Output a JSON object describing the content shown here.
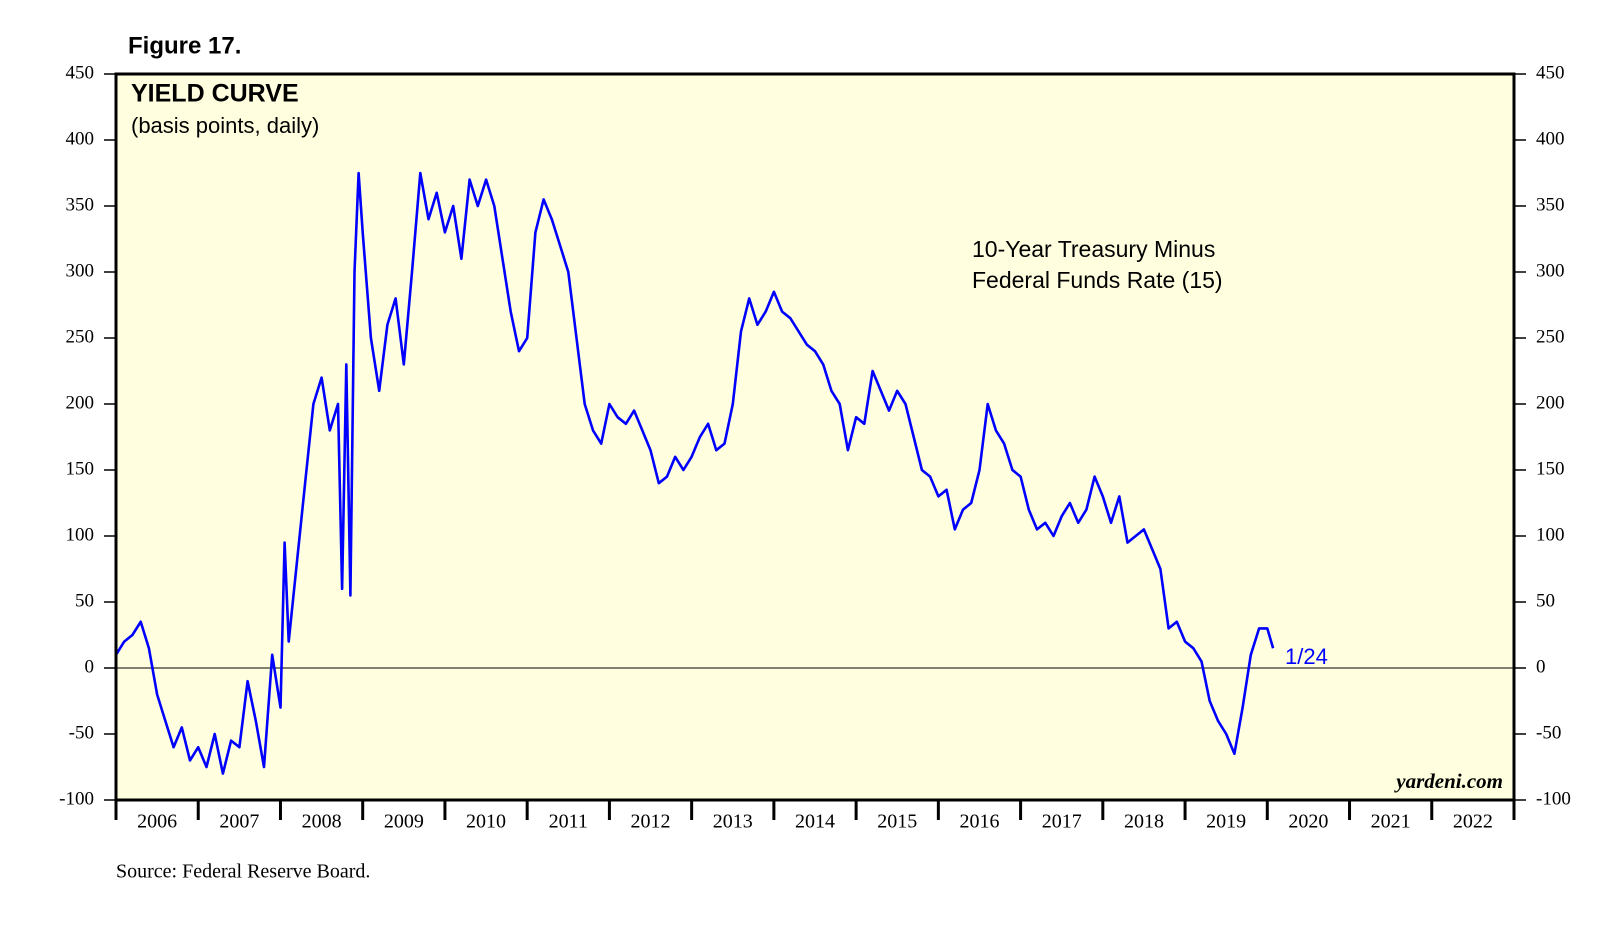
{
  "chart_data": {
    "type": "line",
    "figure_label": "Figure 17.",
    "title": "YIELD CURVE",
    "subtitle": "(basis points, daily)",
    "annotations": [
      "10-Year Treasury Minus",
      "Federal Funds Rate (15)"
    ],
    "end_label": "1/24",
    "watermark": "yardeni.com",
    "source": "Source: Federal Reserve Board.",
    "x": [
      2006.0,
      2006.1,
      2006.2,
      2006.3,
      2006.4,
      2006.5,
      2006.6,
      2006.7,
      2006.8,
      2006.9,
      2007.0,
      2007.1,
      2007.2,
      2007.3,
      2007.4,
      2007.5,
      2007.6,
      2007.7,
      2007.8,
      2007.9,
      2008.0,
      2008.05,
      2008.1,
      2008.2,
      2008.3,
      2008.4,
      2008.5,
      2008.6,
      2008.7,
      2008.75,
      2008.8,
      2008.85,
      2008.9,
      2008.95,
      2009.0,
      2009.1,
      2009.2,
      2009.3,
      2009.4,
      2009.5,
      2009.6,
      2009.7,
      2009.8,
      2009.9,
      2010.0,
      2010.1,
      2010.2,
      2010.3,
      2010.4,
      2010.5,
      2010.6,
      2010.7,
      2010.8,
      2010.9,
      2011.0,
      2011.1,
      2011.2,
      2011.3,
      2011.4,
      2011.5,
      2011.6,
      2011.7,
      2011.8,
      2011.9,
      2012.0,
      2012.1,
      2012.2,
      2012.3,
      2012.4,
      2012.5,
      2012.6,
      2012.7,
      2012.8,
      2012.9,
      2013.0,
      2013.1,
      2013.2,
      2013.3,
      2013.4,
      2013.5,
      2013.6,
      2013.7,
      2013.8,
      2013.9,
      2014.0,
      2014.1,
      2014.2,
      2014.3,
      2014.4,
      2014.5,
      2014.6,
      2014.7,
      2014.8,
      2014.9,
      2015.0,
      2015.1,
      2015.2,
      2015.3,
      2015.4,
      2015.5,
      2015.6,
      2015.7,
      2015.8,
      2015.9,
      2016.0,
      2016.1,
      2016.2,
      2016.3,
      2016.4,
      2016.5,
      2016.6,
      2016.7,
      2016.8,
      2016.9,
      2017.0,
      2017.1,
      2017.2,
      2017.3,
      2017.4,
      2017.5,
      2017.6,
      2017.7,
      2017.8,
      2017.9,
      2018.0,
      2018.1,
      2018.2,
      2018.3,
      2018.4,
      2018.5,
      2018.6,
      2018.7,
      2018.8,
      2018.9,
      2019.0,
      2019.1,
      2019.2,
      2019.3,
      2019.4,
      2019.5,
      2019.6,
      2019.7,
      2019.8,
      2019.9,
      2020.0,
      2020.07
    ],
    "series": [
      {
        "color": "#0000ff",
        "values": [
          10,
          20,
          25,
          35,
          15,
          -20,
          -40,
          -60,
          -45,
          -70,
          -60,
          -75,
          -50,
          -80,
          -55,
          -60,
          -10,
          -40,
          -75,
          10,
          -30,
          95,
          20,
          80,
          140,
          200,
          220,
          180,
          200,
          60,
          230,
          55,
          300,
          375,
          330,
          250,
          210,
          260,
          280,
          230,
          300,
          375,
          340,
          360,
          330,
          350,
          310,
          370,
          350,
          370,
          350,
          310,
          270,
          240,
          250,
          330,
          355,
          340,
          320,
          300,
          250,
          200,
          180,
          170,
          200,
          190,
          185,
          195,
          180,
          165,
          140,
          145,
          160,
          150,
          160,
          175,
          185,
          165,
          170,
          200,
          255,
          280,
          260,
          270,
          285,
          270,
          265,
          255,
          245,
          240,
          230,
          210,
          200,
          165,
          190,
          185,
          225,
          210,
          195,
          210,
          200,
          175,
          150,
          145,
          130,
          135,
          105,
          120,
          125,
          150,
          200,
          180,
          170,
          150,
          145,
          120,
          105,
          110,
          100,
          115,
          125,
          110,
          120,
          145,
          130,
          110,
          130,
          95,
          100,
          105,
          90,
          75,
          30,
          35,
          20,
          15,
          5,
          -25,
          -40,
          -50,
          -65,
          -30,
          10,
          30,
          30,
          15
        ]
      }
    ],
    "xlim": [
      2006,
      2023
    ],
    "xticks": [
      2006,
      2007,
      2008,
      2009,
      2010,
      2011,
      2012,
      2013,
      2014,
      2015,
      2016,
      2017,
      2018,
      2019,
      2020,
      2021,
      2022
    ],
    "ylim": [
      -100,
      450
    ],
    "yticks": [
      -100,
      -50,
      0,
      50,
      100,
      150,
      200,
      250,
      300,
      350,
      400,
      450
    ],
    "zero_line": true
  }
}
